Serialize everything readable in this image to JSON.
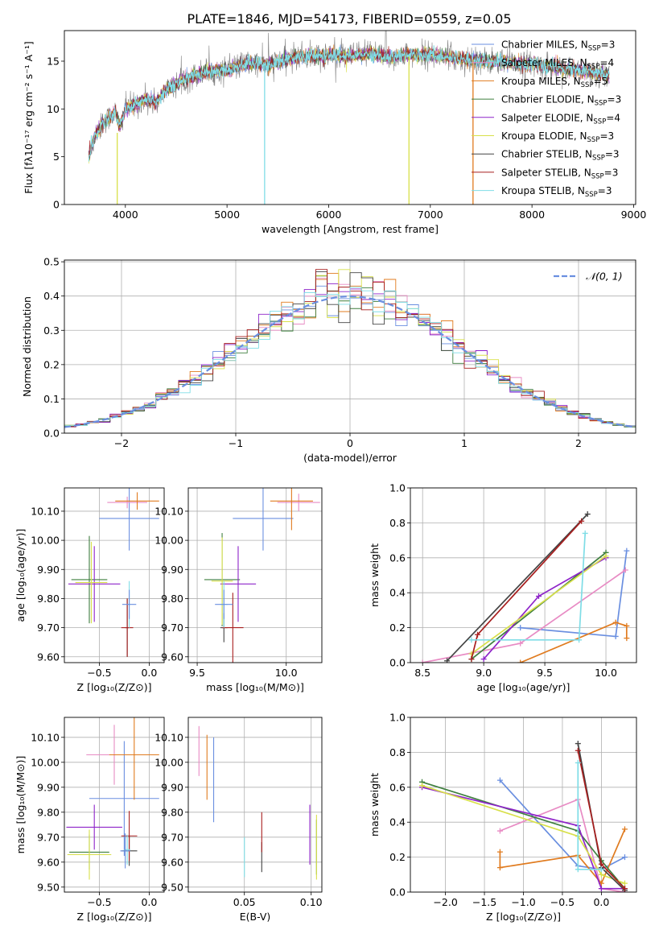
{
  "figure": {
    "title": "PLATE=1846, MJD=54173, FIBERID=0559, z=0.05"
  },
  "colors": {
    "chabrier_miles": "#6a8fe0",
    "salpeter_miles": "#e88bc4",
    "kroupa_miles": "#e07b1f",
    "chabrier_elodie": "#3f7f3f",
    "salpeter_elodie": "#8e24c9",
    "kroupa_elodie": "#d8e04a",
    "chabrier_stelib": "#444444",
    "salpeter_stelib": "#a81f1f",
    "kroupa_stelib": "#7fdde6",
    "data_gray": "#808080",
    "gauss": "#6a8fe0",
    "grid": "#b0b0b0"
  },
  "chart_data": [
    {
      "id": "spectrum",
      "type": "line",
      "title": "PLATE=1846, MJD=54173, FIBERID=0559, z=0.05",
      "xlabel": "wavelength [Angstrom, rest frame]",
      "ylabel": "Flux [fλ10⁻¹⁷ erg cm⁻² s⁻¹ A⁻¹]",
      "xlim": [
        3400,
        9020
      ],
      "ylim": [
        0,
        18.2
      ],
      "xticks": [
        4000,
        5000,
        6000,
        7000,
        8000,
        9000
      ],
      "yticks": [
        0,
        5,
        10,
        15
      ],
      "grid": false,
      "legend_position": "right",
      "legend": [
        {
          "label": "Chabrier MILES, N",
          "sub": "SSP",
          "suffix": "=3",
          "color_key": "chabrier_miles"
        },
        {
          "label": "Salpeter MILES, N",
          "sub": "SSP",
          "suffix": "=4",
          "color_key": "salpeter_miles"
        },
        {
          "label": "Kroupa MILES, N",
          "sub": "SSP",
          "suffix": "=5",
          "color_key": "kroupa_miles"
        },
        {
          "label": "Chabrier ELODIE, N",
          "sub": "SSP",
          "suffix": "=3",
          "color_key": "chabrier_elodie"
        },
        {
          "label": "Salpeter ELODIE, N",
          "sub": "SSP",
          "suffix": "=4",
          "color_key": "salpeter_elodie"
        },
        {
          "label": "Kroupa ELODIE, N",
          "sub": "SSP",
          "suffix": "=3",
          "color_key": "kroupa_elodie"
        },
        {
          "label": "Chabrier STELIB, N",
          "sub": "SSP",
          "suffix": "=3",
          "color_key": "chabrier_stelib"
        },
        {
          "label": "Salpeter STELIB, N",
          "sub": "SSP",
          "suffix": "=3",
          "color_key": "salpeter_stelib"
        },
        {
          "label": "Kroupa STELIB, N",
          "sub": "SSP",
          "suffix": "=3",
          "color_key": "kroupa_stelib"
        }
      ],
      "continuum": [
        [
          3640,
          5.0
        ],
        [
          3700,
          7.2
        ],
        [
          3800,
          8.8
        ],
        [
          3900,
          9.6
        ],
        [
          3950,
          8.2
        ],
        [
          4000,
          10.0
        ],
        [
          4100,
          10.5
        ],
        [
          4200,
          11.0
        ],
        [
          4300,
          10.7
        ],
        [
          4400,
          12.0
        ],
        [
          4600,
          13.2
        ],
        [
          4800,
          13.9
        ],
        [
          5000,
          14.1
        ],
        [
          5200,
          14.8
        ],
        [
          5400,
          14.6
        ],
        [
          5600,
          15.3
        ],
        [
          5800,
          15.5
        ],
        [
          6000,
          15.6
        ],
        [
          6200,
          15.5
        ],
        [
          6400,
          15.8
        ],
        [
          6600,
          15.4
        ],
        [
          6800,
          15.7
        ],
        [
          7000,
          15.7
        ],
        [
          7200,
          15.4
        ],
        [
          7400,
          15.2
        ],
        [
          7600,
          15.0
        ],
        [
          7800,
          14.8
        ],
        [
          8000,
          14.7
        ],
        [
          8200,
          14.4
        ],
        [
          8400,
          14.1
        ],
        [
          8600,
          13.8
        ],
        [
          8760,
          13.5
        ]
      ],
      "drops": [
        {
          "color_key": "kroupa_elodie",
          "x": 3920,
          "from": 7.5,
          "to": 0
        },
        {
          "color_key": "kroupa_stelib",
          "x": 5370,
          "from": 14.7,
          "to": 0
        },
        {
          "color_key": "kroupa_elodie",
          "x": 6790,
          "from": 15.5,
          "to": 0
        },
        {
          "color_key": "kroupa_miles",
          "x": 7420,
          "from": 15.2,
          "to": 0
        }
      ]
    },
    {
      "id": "residuals",
      "type": "bar",
      "xlabel": "(data-model)/error",
      "ylabel": "Normed distribution",
      "xlim": [
        -2.5,
        2.5
      ],
      "ylim": [
        0,
        0.505
      ],
      "xticks": [
        -2,
        -1,
        0,
        1,
        2
      ],
      "yticks": [
        0.0,
        0.1,
        0.2,
        0.3,
        0.4,
        0.5
      ],
      "grid": true,
      "bin_width": 0.1,
      "legend_position": "top-right",
      "legend_label": "𝒩(0, 1)"
    },
    {
      "id": "age_vs_Z",
      "type": "scatter",
      "xlabel": "Z [log₁₀(Z/Z⊙)]",
      "ylabel": "age  [log₁₀(age/yr)]",
      "xlim": [
        -0.85,
        0.15
      ],
      "ylim": [
        9.58,
        10.18
      ],
      "xticks": [
        -0.5,
        0.0
      ],
      "yticks": [
        9.6,
        9.7,
        9.8,
        9.9,
        10.0,
        10.1
      ],
      "grid": true,
      "points": [
        {
          "color_key": "chabrier_miles",
          "x": -0.2,
          "y": 10.075,
          "xerr": 0.3,
          "yerr": 0.11
        },
        {
          "color_key": "salpeter_miles",
          "x": -0.22,
          "y": 10.13,
          "xerr": 0.2,
          "yerr": 0.02
        },
        {
          "color_key": "kroupa_miles",
          "x": -0.12,
          "y": 10.135,
          "xerr": 0.22,
          "yerr": 0.03
        },
        {
          "color_key": "chabrier_elodie",
          "x": -0.6,
          "y": 9.865,
          "xerr": 0.18,
          "yerr": 0.15
        },
        {
          "color_key": "salpeter_elodie",
          "x": -0.55,
          "y": 9.85,
          "xerr": 0.26,
          "yerr": 0.13
        },
        {
          "color_key": "kroupa_elodie",
          "x": -0.58,
          "y": 9.855,
          "xerr": 0.16,
          "yerr": 0.14
        },
        {
          "color_key": "chabrier_stelib",
          "x": -0.22,
          "y": 9.7,
          "xerr": 0.02,
          "yerr": 0.1
        },
        {
          "color_key": "salpeter_stelib",
          "x": -0.22,
          "y": 9.7,
          "xerr": 0.06,
          "yerr": 0.1
        },
        {
          "color_key": "kroupa_stelib",
          "x": -0.2,
          "y": 9.78,
          "xerr": 0.01,
          "yerr": 0.08
        },
        {
          "color_key": "chabrier_miles",
          "x": -0.2,
          "y": 9.78,
          "xerr": 0.07,
          "yerr": 0.05
        }
      ]
    },
    {
      "id": "age_vs_mass",
      "type": "scatter",
      "xlabel": "mass [log₁₀(M/M⊙)]",
      "ylabel": "",
      "xlim": [
        9.45,
        10.2
      ],
      "ylim": [
        9.58,
        10.18
      ],
      "xticks": [
        9.5,
        10.0
      ],
      "yticks": [
        9.6,
        9.7,
        9.8,
        9.9,
        10.0,
        10.1
      ],
      "grid": true,
      "points": [
        {
          "color_key": "chabrier_miles",
          "x": 9.87,
          "y": 10.075,
          "xerr": 0.17,
          "yerr": 0.11
        },
        {
          "color_key": "salpeter_miles",
          "x": 10.07,
          "y": 10.13,
          "xerr": 0.12,
          "yerr": 0.03
        },
        {
          "color_key": "kroupa_miles",
          "x": 10.03,
          "y": 10.135,
          "xerr": 0.12,
          "yerr": 0.1
        },
        {
          "color_key": "chabrier_elodie",
          "x": 9.64,
          "y": 9.865,
          "xerr": 0.1,
          "yerr": 0.16
        },
        {
          "color_key": "salpeter_elodie",
          "x": 9.73,
          "y": 9.85,
          "xerr": 0.1,
          "yerr": 0.13
        },
        {
          "color_key": "kroupa_elodie",
          "x": 9.64,
          "y": 9.86,
          "xerr": 0.06,
          "yerr": 0.15
        },
        {
          "color_key": "chabrier_stelib",
          "x": 9.65,
          "y": 9.7,
          "xerr": 0.02,
          "yerr": 0.05
        },
        {
          "color_key": "salpeter_stelib",
          "x": 9.7,
          "y": 9.7,
          "xerr": 0.06,
          "yerr": 0.12
        },
        {
          "color_key": "kroupa_stelib",
          "x": 9.65,
          "y": 9.78,
          "xerr": 0.02,
          "yerr": 0.08
        },
        {
          "color_key": "chabrier_miles",
          "x": 9.65,
          "y": 9.78,
          "xerr": 0.05,
          "yerr": 0.05
        }
      ]
    },
    {
      "id": "weight_vs_age",
      "type": "line",
      "xlabel": "age  [log₁₀(age/yr)]",
      "ylabel": "mass weight",
      "xlim": [
        8.4,
        10.25
      ],
      "ylim": [
        0,
        1.0
      ],
      "xticks": [
        8.5,
        9.0,
        9.5,
        10.0
      ],
      "yticks": [
        0.0,
        0.2,
        0.4,
        0.6,
        0.8,
        1.0
      ],
      "grid": true,
      "series": [
        {
          "color_key": "chabrier_miles",
          "x": [
            9.3,
            10.08,
            10.17
          ],
          "y": [
            0.2,
            0.15,
            0.64
          ]
        },
        {
          "color_key": "salpeter_miles",
          "x": [
            8.5,
            9.3,
            10.16
          ],
          "y": [
            0.0,
            0.11,
            0.53
          ]
        },
        {
          "color_key": "kroupa_miles",
          "x": [
            9.3,
            10.08,
            10.17,
            10.17
          ],
          "y": [
            0.0,
            0.23,
            0.21,
            0.14
          ]
        },
        {
          "color_key": "chabrier_elodie",
          "x": [
            8.9,
            10.0
          ],
          "y": [
            0.02,
            0.63
          ]
        },
        {
          "color_key": "salpeter_elodie",
          "x": [
            9.0,
            9.45,
            10.0
          ],
          "y": [
            0.02,
            0.38,
            0.6
          ]
        },
        {
          "color_key": "kroupa_elodie",
          "x": [
            8.9,
            10.0
          ],
          "y": [
            0.05,
            0.61
          ]
        },
        {
          "color_key": "chabrier_stelib",
          "x": [
            8.7,
            9.85
          ],
          "y": [
            0.01,
            0.85
          ]
        },
        {
          "color_key": "salpeter_stelib",
          "x": [
            8.9,
            8.95,
            9.8
          ],
          "y": [
            0.02,
            0.16,
            0.81
          ]
        },
        {
          "color_key": "kroupa_stelib",
          "x": [
            8.9,
            9.78,
            9.83
          ],
          "y": [
            0.13,
            0.13,
            0.74
          ]
        }
      ]
    },
    {
      "id": "mass_vs_Z",
      "type": "scatter",
      "xlabel": "Z [log₁₀(Z/Z⊙)]",
      "ylabel": "mass [log₁₀(M/M⊙)]",
      "xlim": [
        -0.85,
        0.15
      ],
      "ylim": [
        9.48,
        10.18
      ],
      "xticks": [
        -0.5,
        0.0
      ],
      "yticks": [
        9.5,
        9.6,
        9.7,
        9.8,
        9.9,
        10.0,
        10.1
      ],
      "grid": true,
      "points": [
        {
          "color_key": "chabrier_miles",
          "x": -0.25,
          "y": 9.855,
          "xerr": 0.35,
          "yerr": 0.23
        },
        {
          "color_key": "salpeter_miles",
          "x": -0.35,
          "y": 10.03,
          "xerr": 0.28,
          "yerr": 0.12
        },
        {
          "color_key": "kroupa_miles",
          "x": -0.15,
          "y": 10.03,
          "xerr": 0.25,
          "yerr": 0.18
        },
        {
          "color_key": "chabrier_elodie",
          "x": -0.6,
          "y": 9.64,
          "xerr": 0.2,
          "yerr": 0.07
        },
        {
          "color_key": "salpeter_elodie",
          "x": -0.55,
          "y": 9.74,
          "xerr": 0.28,
          "yerr": 0.09
        },
        {
          "color_key": "kroupa_elodie",
          "x": -0.6,
          "y": 9.63,
          "xerr": 0.22,
          "yerr": 0.1
        },
        {
          "color_key": "chabrier_stelib",
          "x": -0.2,
          "y": 9.645,
          "xerr": 0.08,
          "yerr": 0.06
        },
        {
          "color_key": "salpeter_stelib",
          "x": -0.2,
          "y": 9.705,
          "xerr": 0.08,
          "yerr": 0.1
        },
        {
          "color_key": "kroupa_stelib",
          "x": -0.22,
          "y": 9.65,
          "xerr": 0.03,
          "yerr": 0.06
        },
        {
          "color_key": "chabrier_miles",
          "x": -0.24,
          "y": 9.645,
          "xerr": 0.05,
          "yerr": 0.07
        }
      ]
    },
    {
      "id": "mass_vs_EBV",
      "type": "scatter",
      "xlabel": "E(B-V)",
      "ylabel": "",
      "xlim": [
        0.008,
        0.108
      ],
      "ylim": [
        9.48,
        10.18
      ],
      "xticks": [
        0.05,
        0.1
      ],
      "yticks": [
        9.5,
        9.6,
        9.7,
        9.8,
        9.9,
        10.0,
        10.1
      ],
      "grid": true,
      "points": [
        {
          "color_key": "salpeter_miles",
          "x": 0.016,
          "y": 10.045,
          "xerr": 0.0,
          "yerr": 0.1
        },
        {
          "color_key": "kroupa_miles",
          "x": 0.022,
          "y": 9.98,
          "xerr": 0.0,
          "yerr": 0.13
        },
        {
          "color_key": "chabrier_miles",
          "x": 0.027,
          "y": 9.93,
          "xerr": 0.0,
          "yerr": 0.17
        },
        {
          "color_key": "kroupa_stelib",
          "x": 0.05,
          "y": 9.62,
          "xerr": 0.0,
          "yerr": 0.08
        },
        {
          "color_key": "chabrier_stelib",
          "x": 0.063,
          "y": 9.62,
          "xerr": 0.0,
          "yerr": 0.06
        },
        {
          "color_key": "salpeter_stelib",
          "x": 0.063,
          "y": 9.72,
          "xerr": 0.0,
          "yerr": 0.08
        },
        {
          "color_key": "salpeter_elodie",
          "x": 0.099,
          "y": 9.71,
          "xerr": 0.0,
          "yerr": 0.12
        },
        {
          "color_key": "chabrier_elodie",
          "x": 0.104,
          "y": 9.66,
          "xerr": 0.0,
          "yerr": 0.11
        },
        {
          "color_key": "kroupa_elodie",
          "x": 0.104,
          "y": 9.66,
          "xerr": 0.0,
          "yerr": 0.13
        }
      ]
    },
    {
      "id": "weight_vs_Z",
      "type": "line",
      "xlabel": "Z [log₁₀(Z/Z⊙)]",
      "ylabel": "mass weight",
      "xlim": [
        -2.45,
        0.45
      ],
      "ylim": [
        0,
        1.0
      ],
      "xticks": [
        -2.0,
        -1.5,
        -1.0,
        -0.5,
        0.0
      ],
      "yticks": [
        0.0,
        0.2,
        0.4,
        0.6,
        0.8,
        1.0
      ],
      "grid": true,
      "series": [
        {
          "color_key": "chabrier_miles",
          "x": [
            -1.3,
            -0.3,
            0.0,
            0.3
          ],
          "y": [
            0.64,
            0.15,
            0.13,
            0.2
          ]
        },
        {
          "color_key": "salpeter_miles",
          "x": [
            -1.3,
            -0.3,
            0.0,
            0.3
          ],
          "y": [
            0.35,
            0.53,
            0.02,
            0.0
          ]
        },
        {
          "color_key": "kroupa_miles",
          "x": [
            -1.3,
            -1.3,
            -0.3,
            0.0,
            0.3
          ],
          "y": [
            0.23,
            0.14,
            0.21,
            0.05,
            0.36
          ]
        },
        {
          "color_key": "chabrier_elodie",
          "x": [
            -2.3,
            -0.3,
            0.0,
            0.3
          ],
          "y": [
            0.63,
            0.35,
            0.18,
            0.02
          ]
        },
        {
          "color_key": "salpeter_elodie",
          "x": [
            -2.3,
            -0.3,
            0.0,
            0.3
          ],
          "y": [
            0.6,
            0.38,
            0.02,
            0.02
          ]
        },
        {
          "color_key": "kroupa_elodie",
          "x": [
            -2.3,
            -0.3,
            0.0,
            0.3
          ],
          "y": [
            0.61,
            0.32,
            0.1,
            0.05
          ]
        },
        {
          "color_key": "chabrier_stelib",
          "x": [
            -0.3,
            0.0,
            0.3
          ],
          "y": [
            0.85,
            0.14,
            0.01
          ]
        },
        {
          "color_key": "salpeter_stelib",
          "x": [
            -0.3,
            0.0,
            0.3
          ],
          "y": [
            0.81,
            0.16,
            0.02
          ]
        },
        {
          "color_key": "kroupa_stelib",
          "x": [
            -0.3,
            -0.3,
            0.0
          ],
          "y": [
            0.74,
            0.13,
            0.13
          ]
        }
      ]
    }
  ]
}
